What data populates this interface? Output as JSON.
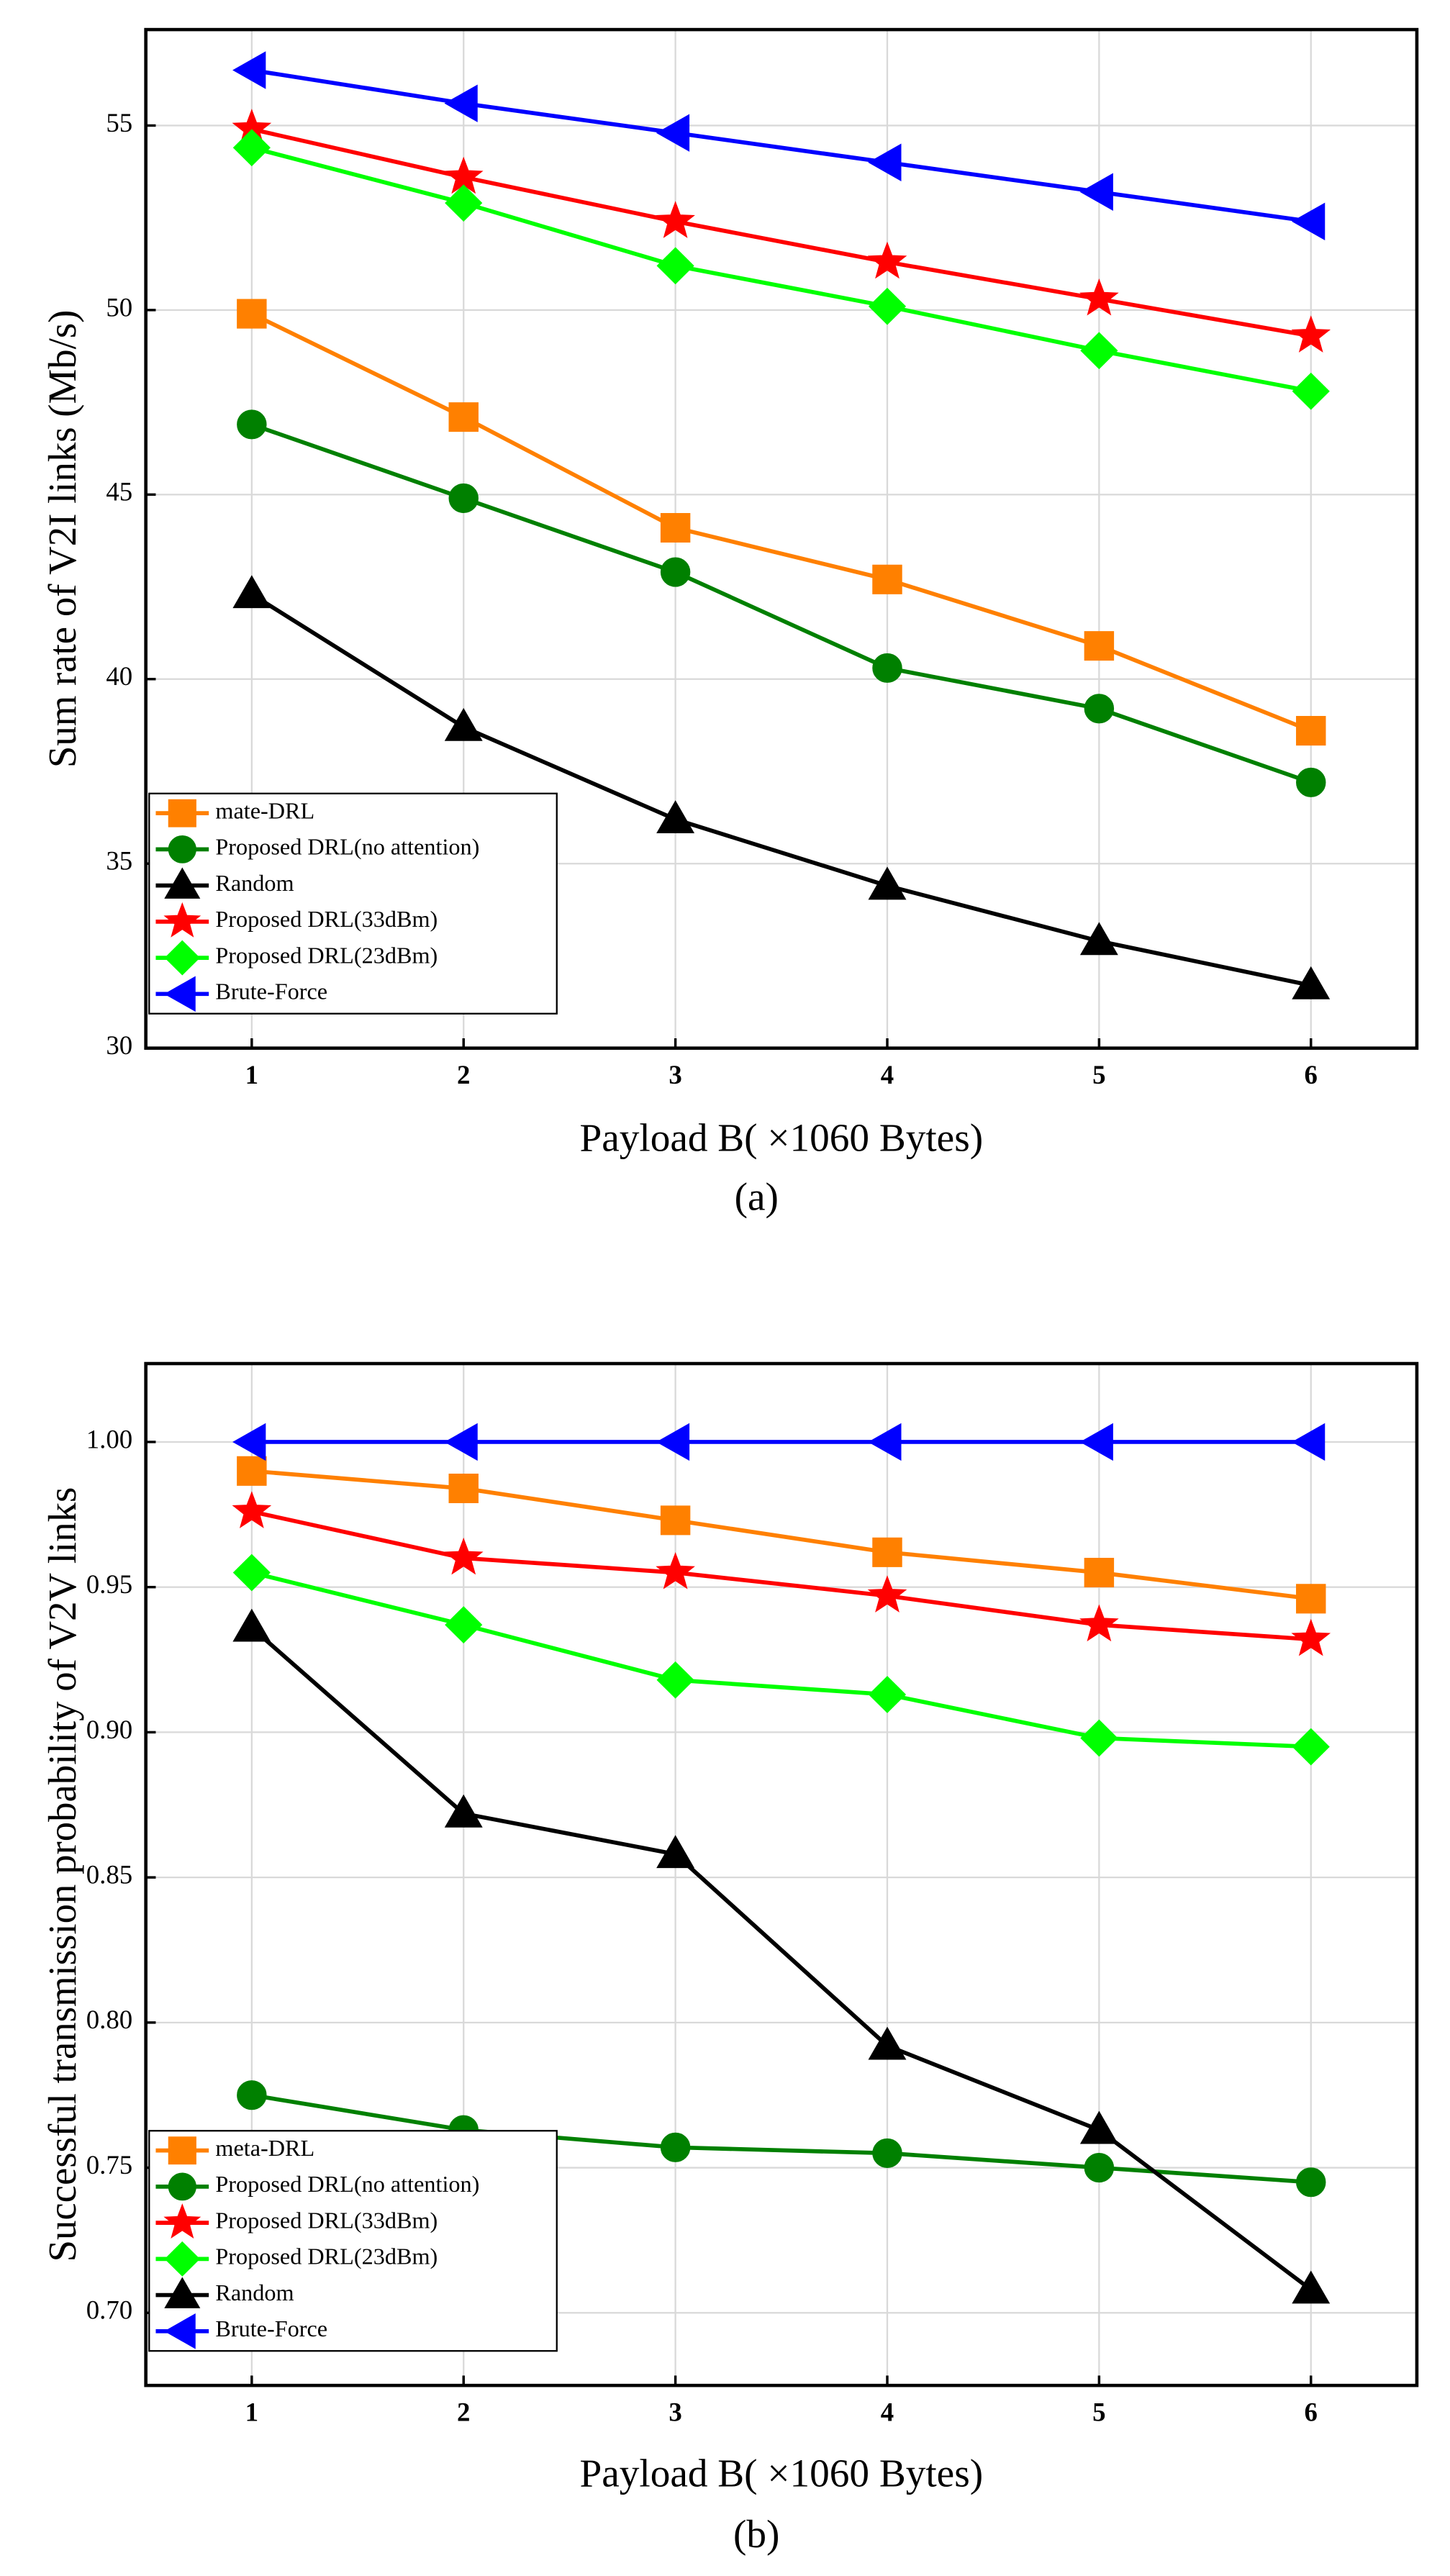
{
  "chart_data": [
    {
      "type": "line",
      "caption": "(a)",
      "x_label": "Payload B( ×1060 Bytes)",
      "y_label": "Sum rate of V2I links (Mb/s)",
      "x": [
        1,
        2,
        3,
        4,
        5,
        6
      ],
      "xlim": [
        0.5,
        6.5
      ],
      "xticks": [
        1,
        2,
        3,
        4,
        5,
        6
      ],
      "ylim": [
        30,
        57.6
      ],
      "yticks": [
        30,
        35,
        40,
        45,
        50,
        55
      ],
      "grid": true,
      "legend": "lower left",
      "series": [
        {
          "name": "mate-DRL",
          "color": "#ff8000",
          "marker": "square",
          "values": [
            49.9,
            47.1,
            44.1,
            42.7,
            40.9,
            38.6
          ]
        },
        {
          "name": "Proposed DRL(no attention)",
          "color": "#008000",
          "marker": "circle",
          "values": [
            46.9,
            44.9,
            42.9,
            40.3,
            39.2,
            37.2
          ]
        },
        {
          "name": "Random",
          "color": "#000000",
          "marker": "triangle-up",
          "values": [
            42.3,
            38.7,
            36.2,
            34.4,
            32.9,
            31.7
          ]
        },
        {
          "name": "Proposed DRL(33dBm)",
          "color": "#ff0000",
          "marker": "star",
          "values": [
            54.9,
            53.6,
            52.4,
            51.3,
            50.3,
            49.3
          ]
        },
        {
          "name": "Proposed DRL(23dBm)",
          "color": "#00ff00",
          "marker": "diamond",
          "values": [
            54.4,
            52.9,
            51.2,
            50.1,
            48.9,
            47.8
          ]
        },
        {
          "name": "Brute-Force",
          "color": "#0000ff",
          "marker": "triangle-left",
          "values": [
            56.5,
            55.6,
            54.8,
            54.0,
            53.2,
            52.4
          ]
        }
      ]
    },
    {
      "type": "line",
      "caption": "(b)",
      "x_label": "Payload B( ×1060 Bytes)",
      "y_label": "Successful transmission probability of V2V links",
      "x": [
        1,
        2,
        3,
        4,
        5,
        6
      ],
      "xlim": [
        0.5,
        6.5
      ],
      "xticks": [
        1,
        2,
        3,
        4,
        5,
        6
      ],
      "ylim": [
        0.675,
        1.027
      ],
      "yticks": [
        {
          "value": 0.7,
          "label": "0.70"
        },
        {
          "value": 0.75,
          "label": "0.75"
        },
        {
          "value": 0.8,
          "label": "0.80"
        },
        {
          "value": 0.85,
          "label": "0.85"
        },
        {
          "value": 0.9,
          "label": "0.90"
        },
        {
          "value": 0.95,
          "label": "0.95"
        },
        {
          "value": 1,
          "label": "1.00"
        }
      ],
      "grid": true,
      "legend": "lower left",
      "series": [
        {
          "name": "meta-DRL",
          "color": "#ff8000",
          "marker": "square",
          "values": [
            0.99,
            0.984,
            0.973,
            0.962,
            0.955,
            0.946
          ]
        },
        {
          "name": "Proposed DRL(no attention)",
          "color": "#008000",
          "marker": "circle",
          "values": [
            0.775,
            0.763,
            0.757,
            0.755,
            0.75,
            0.745
          ]
        },
        {
          "name": "Proposed DRL(33dBm)",
          "color": "#ff0000",
          "marker": "star",
          "values": [
            0.976,
            0.96,
            0.955,
            0.947,
            0.937,
            0.932
          ]
        },
        {
          "name": "Proposed DRL(23dBm)",
          "color": "#00ff00",
          "marker": "diamond",
          "values": [
            0.955,
            0.937,
            0.918,
            0.913,
            0.898,
            0.895
          ]
        },
        {
          "name": "Random",
          "color": "#000000",
          "marker": "triangle-up",
          "values": [
            0.936,
            0.872,
            0.858,
            0.792,
            0.763,
            0.708
          ]
        },
        {
          "name": "Brute-Force",
          "color": "#0000ff",
          "marker": "triangle-left",
          "values": [
            1.0,
            1.0,
            1.0,
            1.0,
            1.0,
            1.0
          ]
        }
      ]
    }
  ]
}
